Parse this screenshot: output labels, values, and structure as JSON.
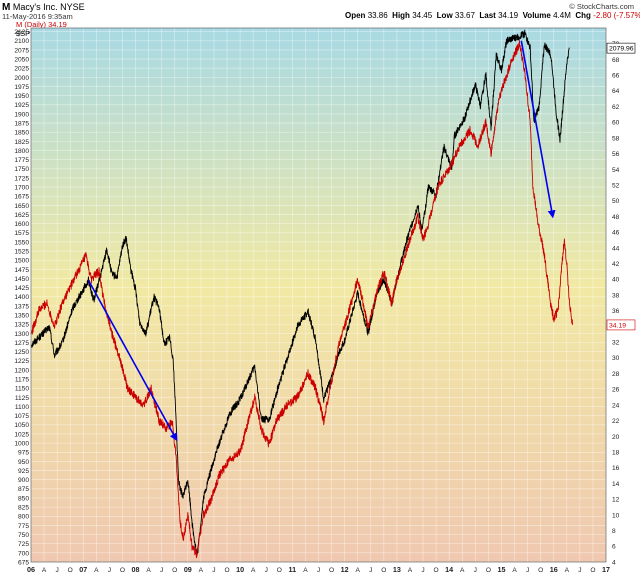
{
  "header": {
    "ticker_symbol": "M",
    "company": "Macy's Inc. NYSE",
    "date": "11-May-2016 9:35am",
    "open_label": "Open",
    "open_value": "33.86",
    "high_label": "High",
    "high_value": "34.45",
    "low_label": "Low",
    "low_value": "33.67",
    "last_label": "Last",
    "last_value": "34.19",
    "volume_label": "Volume",
    "volume_value": "4.4M",
    "chg_label": "Chg",
    "chg_value": "-2.80 (-7.57%)",
    "brand": "© StockCharts.com"
  },
  "legend": {
    "m_label": "M (Daily) 34.19",
    "spx_label": "$SPX 2079.96"
  },
  "chart_data": {
    "type": "line",
    "x_axis_labels": [
      "06",
      "A",
      "J",
      "O",
      "07",
      "A",
      "J",
      "O",
      "08",
      "A",
      "J",
      "O",
      "09",
      "A",
      "J",
      "O",
      "10",
      "A",
      "J",
      "O",
      "11",
      "A",
      "J",
      "O",
      "12",
      "A",
      "J",
      "O",
      "13",
      "A",
      "J",
      "O",
      "14",
      "A",
      "J",
      "O",
      "15",
      "A",
      "J",
      "O",
      "16",
      "A",
      "J",
      "O",
      "17"
    ],
    "x_range": [
      2006.0,
      2017.0
    ],
    "left_axis": {
      "series": "$SPX",
      "range": [
        675,
        2135
      ],
      "ticks": [
        675,
        700,
        725,
        750,
        775,
        800,
        825,
        850,
        875,
        900,
        925,
        950,
        975,
        1000,
        1025,
        1050,
        1075,
        1100,
        1125,
        1150,
        1175,
        1200,
        1225,
        1250,
        1275,
        1300,
        1325,
        1350,
        1375,
        1400,
        1425,
        1450,
        1475,
        1500,
        1525,
        1550,
        1575,
        1600,
        1625,
        1650,
        1675,
        1700,
        1725,
        1750,
        1775,
        1800,
        1825,
        1850,
        1875,
        1900,
        1925,
        1950,
        1975,
        2000,
        2025,
        2050,
        2075,
        2100,
        2125
      ],
      "last_value_tag": "2079.96"
    },
    "right_axis": {
      "series": "M",
      "range": [
        4,
        72
      ],
      "ticks": [
        4,
        6,
        8,
        10,
        12,
        14,
        16,
        18,
        20,
        22,
        24,
        26,
        28,
        30,
        32,
        34,
        36,
        38,
        40,
        42,
        44,
        46,
        48,
        50,
        52,
        54,
        56,
        58,
        60,
        62,
        64,
        66,
        68,
        70
      ],
      "last_value_tag": "34.19"
    },
    "series": [
      {
        "name": "$SPX",
        "color": "#000000",
        "axis": "left",
        "points": [
          [
            2006.0,
            1268
          ],
          [
            2006.2,
            1295
          ],
          [
            2006.35,
            1318
          ],
          [
            2006.45,
            1240
          ],
          [
            2006.6,
            1275
          ],
          [
            2006.8,
            1370
          ],
          [
            2007.0,
            1420
          ],
          [
            2007.1,
            1445
          ],
          [
            2007.2,
            1390
          ],
          [
            2007.35,
            1470
          ],
          [
            2007.45,
            1530
          ],
          [
            2007.55,
            1460
          ],
          [
            2007.65,
            1455
          ],
          [
            2007.75,
            1540
          ],
          [
            2007.82,
            1560
          ],
          [
            2007.9,
            1480
          ],
          [
            2008.0,
            1420
          ],
          [
            2008.08,
            1330
          ],
          [
            2008.2,
            1300
          ],
          [
            2008.35,
            1400
          ],
          [
            2008.45,
            1370
          ],
          [
            2008.55,
            1270
          ],
          [
            2008.65,
            1290
          ],
          [
            2008.72,
            1230
          ],
          [
            2008.78,
            1050
          ],
          [
            2008.82,
            900
          ],
          [
            2008.9,
            850
          ],
          [
            2009.0,
            900
          ],
          [
            2009.1,
            760
          ],
          [
            2009.18,
            690
          ],
          [
            2009.3,
            850
          ],
          [
            2009.45,
            930
          ],
          [
            2009.6,
            1000
          ],
          [
            2009.8,
            1080
          ],
          [
            2010.0,
            1120
          ],
          [
            2010.28,
            1210
          ],
          [
            2010.4,
            1070
          ],
          [
            2010.55,
            1060
          ],
          [
            2010.7,
            1140
          ],
          [
            2010.9,
            1230
          ],
          [
            2011.1,
            1320
          ],
          [
            2011.3,
            1360
          ],
          [
            2011.45,
            1280
          ],
          [
            2011.6,
            1120
          ],
          [
            2011.75,
            1180
          ],
          [
            2011.9,
            1250
          ],
          [
            2012.0,
            1280
          ],
          [
            2012.25,
            1410
          ],
          [
            2012.45,
            1300
          ],
          [
            2012.6,
            1400
          ],
          [
            2012.75,
            1450
          ],
          [
            2012.9,
            1380
          ],
          [
            2013.0,
            1450
          ],
          [
            2013.2,
            1560
          ],
          [
            2013.4,
            1650
          ],
          [
            2013.48,
            1580
          ],
          [
            2013.6,
            1700
          ],
          [
            2013.75,
            1680
          ],
          [
            2013.9,
            1810
          ],
          [
            2014.05,
            1750
          ],
          [
            2014.1,
            1840
          ],
          [
            2014.3,
            1890
          ],
          [
            2014.5,
            1980
          ],
          [
            2014.6,
            1920
          ],
          [
            2014.7,
            2010
          ],
          [
            2014.8,
            1860
          ],
          [
            2014.9,
            2060
          ],
          [
            2015.0,
            2020
          ],
          [
            2015.1,
            2100
          ],
          [
            2015.3,
            2110
          ],
          [
            2015.45,
            2120
          ],
          [
            2015.55,
            2080
          ],
          [
            2015.62,
            1880
          ],
          [
            2015.72,
            1920
          ],
          [
            2015.82,
            2090
          ],
          [
            2015.95,
            2060
          ],
          [
            2016.05,
            1900
          ],
          [
            2016.12,
            1830
          ],
          [
            2016.25,
            2040
          ],
          [
            2016.3,
            2080
          ]
        ]
      },
      {
        "name": "M",
        "color": "#cc0000",
        "axis": "right",
        "points": [
          [
            2006.0,
            33
          ],
          [
            2006.15,
            36
          ],
          [
            2006.3,
            37
          ],
          [
            2006.45,
            34
          ],
          [
            2006.6,
            37
          ],
          [
            2006.75,
            39
          ],
          [
            2006.9,
            41
          ],
          [
            2007.05,
            43
          ],
          [
            2007.15,
            40
          ],
          [
            2007.3,
            41
          ],
          [
            2007.4,
            37
          ],
          [
            2007.55,
            33
          ],
          [
            2007.7,
            30
          ],
          [
            2007.85,
            26
          ],
          [
            2008.0,
            25
          ],
          [
            2008.15,
            24
          ],
          [
            2008.3,
            26
          ],
          [
            2008.45,
            22
          ],
          [
            2008.6,
            21
          ],
          [
            2008.7,
            22
          ],
          [
            2008.78,
            17
          ],
          [
            2008.85,
            9
          ],
          [
            2008.92,
            7
          ],
          [
            2009.0,
            10
          ],
          [
            2009.08,
            6
          ],
          [
            2009.17,
            5
          ],
          [
            2009.3,
            10
          ],
          [
            2009.45,
            12
          ],
          [
            2009.6,
            15
          ],
          [
            2009.8,
            17
          ],
          [
            2010.0,
            18
          ],
          [
            2010.28,
            25
          ],
          [
            2010.4,
            21
          ],
          [
            2010.55,
            19
          ],
          [
            2010.7,
            22
          ],
          [
            2010.9,
            24
          ],
          [
            2011.1,
            25
          ],
          [
            2011.3,
            28
          ],
          [
            2011.45,
            26
          ],
          [
            2011.6,
            22
          ],
          [
            2011.75,
            27
          ],
          [
            2011.9,
            32
          ],
          [
            2012.0,
            34
          ],
          [
            2012.25,
            40
          ],
          [
            2012.45,
            34
          ],
          [
            2012.6,
            38
          ],
          [
            2012.75,
            41
          ],
          [
            2012.9,
            37
          ],
          [
            2013.0,
            40
          ],
          [
            2013.2,
            44
          ],
          [
            2013.4,
            48
          ],
          [
            2013.5,
            45
          ],
          [
            2013.6,
            47
          ],
          [
            2013.8,
            52
          ],
          [
            2014.0,
            54
          ],
          [
            2014.2,
            57
          ],
          [
            2014.4,
            59
          ],
          [
            2014.55,
            57
          ],
          [
            2014.7,
            60
          ],
          [
            2014.8,
            56
          ],
          [
            2014.95,
            63
          ],
          [
            2015.05,
            65
          ],
          [
            2015.2,
            68
          ],
          [
            2015.35,
            70
          ],
          [
            2015.45,
            66
          ],
          [
            2015.55,
            60
          ],
          [
            2015.6,
            52
          ],
          [
            2015.7,
            47
          ],
          [
            2015.8,
            44
          ],
          [
            2015.88,
            40
          ],
          [
            2015.94,
            37
          ],
          [
            2016.0,
            35
          ],
          [
            2016.08,
            36
          ],
          [
            2016.12,
            39
          ],
          [
            2016.2,
            45
          ],
          [
            2016.25,
            42
          ],
          [
            2016.3,
            37
          ],
          [
            2016.36,
            34.2
          ]
        ]
      }
    ],
    "annotations": [
      {
        "type": "arrow",
        "color": "#0000ee",
        "from": [
          2007.1,
          1445
        ],
        "to": [
          2008.78,
          1010
        ],
        "axis": "left"
      },
      {
        "type": "arrow",
        "color": "#0000ee",
        "from": [
          2015.38,
          2100
        ],
        "to": [
          2015.98,
          1620
        ],
        "axis": "left"
      }
    ],
    "background_gradient": [
      "#a8d9e4",
      "#f1e9a4",
      "#f0c8b0"
    ],
    "grid": true
  }
}
